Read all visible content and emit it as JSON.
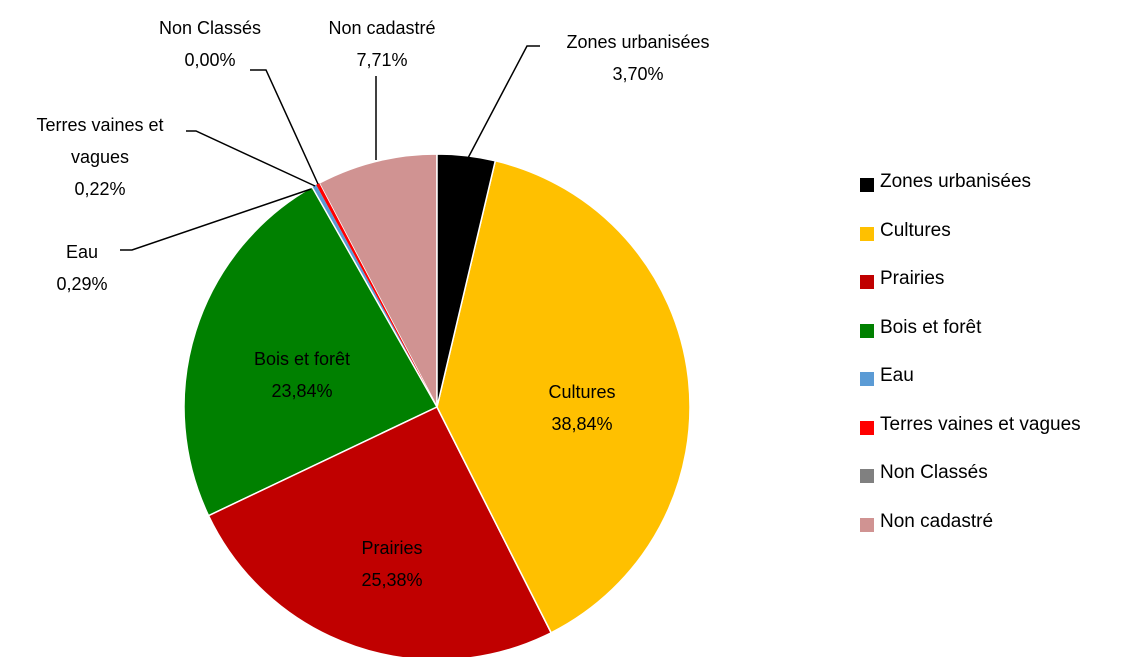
{
  "chart_data": {
    "type": "pie",
    "categories": [
      "Zones urbanisées",
      "Cultures",
      "Prairies",
      "Bois et forêt",
      "Eau",
      "Terres vaines et vagues",
      "Non Classés",
      "Non cadastré"
    ],
    "values": [
      3.7,
      38.84,
      25.38,
      23.84,
      0.29,
      0.22,
      0.0,
      7.71
    ],
    "value_labels": [
      "3,70%",
      "38,84%",
      "25,38%",
      "23,84%",
      "0,29%",
      "0,22%",
      "0,00%",
      "7,71%"
    ],
    "colors": [
      "#000000",
      "#ffc000",
      "#c00000",
      "#008000",
      "#5b9bd5",
      "#ff0000",
      "#808080",
      "#d09392"
    ],
    "legend": "right"
  }
}
